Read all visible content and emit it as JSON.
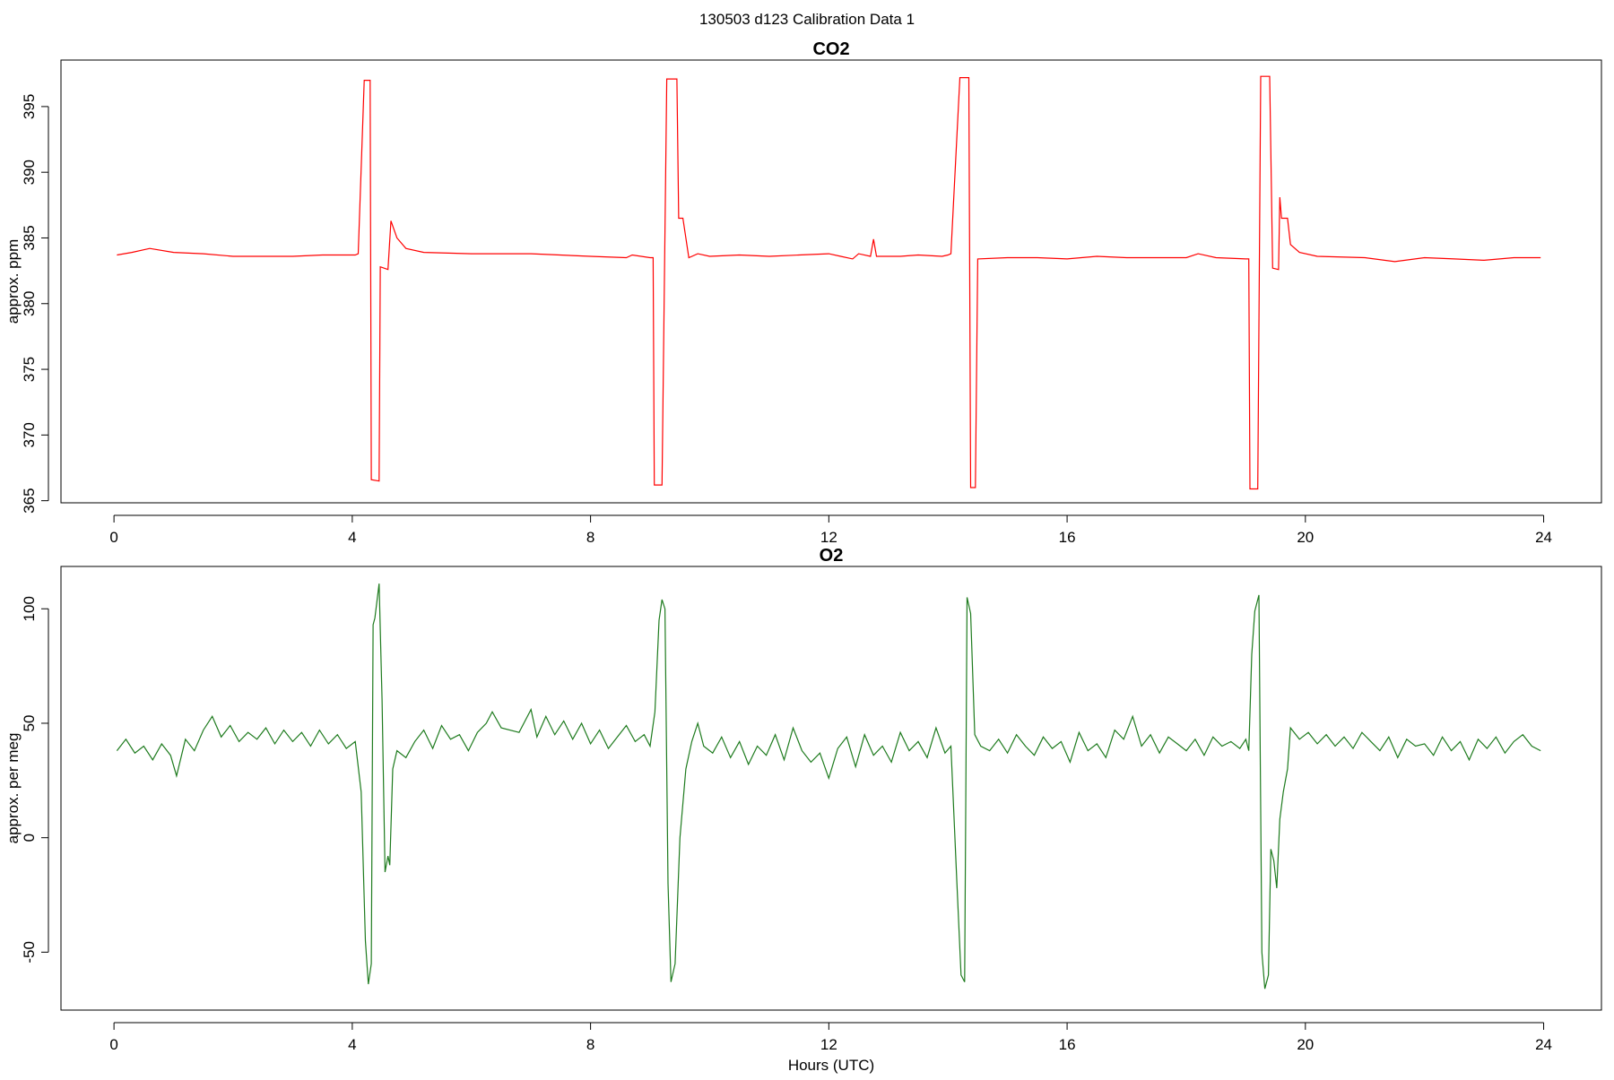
{
  "title": "130503   d123   Calibration Data 1",
  "chart_data": [
    {
      "type": "line",
      "title": "CO2",
      "ylabel": "approx. ppm",
      "color": "#ff0000",
      "xlim": [
        -0.89,
        24.97
      ],
      "xticks": [
        0,
        4,
        8,
        12,
        16,
        20,
        24
      ],
      "ylim": [
        364.84,
        398.54
      ],
      "yticks": [
        365,
        370,
        375,
        380,
        385,
        390,
        395
      ],
      "x": [
        0.05,
        0.3,
        0.6,
        1.0,
        1.5,
        2.0,
        2.5,
        3.0,
        3.5,
        4.05,
        4.1,
        4.2,
        4.3,
        4.32,
        4.45,
        4.47,
        4.6,
        4.65,
        4.75,
        4.9,
        5.2,
        6,
        7,
        8,
        8.6,
        8.7,
        9.0,
        9.05,
        9.07,
        9.2,
        9.28,
        9.45,
        9.48,
        9.55,
        9.65,
        9.8,
        10,
        10.5,
        11,
        11.5,
        12,
        12.2,
        12.4,
        12.5,
        12.7,
        12.75,
        12.8,
        13.2,
        13.5,
        13.9,
        14.0,
        14.05,
        14.2,
        14.35,
        14.38,
        14.46,
        14.5,
        15,
        15.5,
        16,
        16.5,
        17,
        17.5,
        18,
        18.2,
        18.5,
        19.0,
        19.05,
        19.07,
        19.2,
        19.25,
        19.4,
        19.45,
        19.55,
        19.57,
        19.6,
        19.7,
        19.75,
        19.9,
        20.2,
        21,
        21.5,
        22,
        22.5,
        23,
        23.5,
        23.95
      ],
      "values": [
        383.7,
        383.9,
        384.2,
        383.9,
        383.8,
        383.6,
        383.6,
        383.6,
        383.7,
        383.7,
        383.8,
        397.0,
        397.0,
        366.6,
        366.5,
        382.8,
        382.6,
        386.3,
        385.0,
        384.2,
        383.9,
        383.8,
        383.8,
        383.6,
        383.5,
        383.7,
        383.5,
        383.5,
        366.2,
        366.2,
        397.1,
        397.1,
        386.5,
        386.5,
        383.5,
        383.8,
        383.6,
        383.7,
        383.6,
        383.7,
        383.8,
        383.6,
        383.4,
        383.8,
        383.6,
        384.9,
        383.6,
        383.6,
        383.7,
        383.6,
        383.7,
        383.8,
        397.2,
        397.2,
        366.0,
        366.0,
        383.4,
        383.5,
        383.5,
        383.4,
        383.6,
        383.5,
        383.5,
        383.5,
        383.8,
        383.5,
        383.4,
        383.4,
        365.9,
        365.9,
        397.3,
        397.3,
        382.7,
        382.6,
        388.1,
        386.5,
        386.5,
        384.5,
        383.9,
        383.6,
        383.5,
        383.2,
        383.5,
        383.4,
        383.3,
        383.5,
        383.5
      ]
    },
    {
      "type": "line",
      "title": "O2",
      "ylabel": "approx. per meg",
      "xlabel": "Hours (UTC)",
      "color": "#1e7b1e",
      "xlim": [
        -0.89,
        24.97
      ],
      "xticks": [
        0,
        4,
        8,
        12,
        16,
        20,
        24
      ],
      "ylim": [
        -75.3,
        118.5
      ],
      "yticks": [
        -50,
        0,
        50,
        100
      ],
      "x": [
        0.05,
        0.2,
        0.35,
        0.5,
        0.65,
        0.8,
        0.95,
        1.05,
        1.2,
        1.35,
        1.5,
        1.65,
        1.8,
        1.95,
        2.1,
        2.25,
        2.4,
        2.55,
        2.7,
        2.85,
        3.0,
        3.15,
        3.3,
        3.45,
        3.6,
        3.75,
        3.9,
        4.05,
        4.15,
        4.22,
        4.27,
        4.32,
        4.35,
        4.38,
        4.45,
        4.5,
        4.55,
        4.6,
        4.63,
        4.68,
        4.75,
        4.9,
        5.05,
        5.2,
        5.35,
        5.5,
        5.65,
        5.8,
        5.95,
        6.1,
        6.25,
        6.35,
        6.5,
        6.8,
        7.0,
        7.1,
        7.25,
        7.4,
        7.55,
        7.7,
        7.85,
        8.0,
        8.15,
        8.3,
        8.45,
        8.6,
        8.75,
        8.9,
        9.0,
        9.08,
        9.15,
        9.2,
        9.25,
        9.3,
        9.35,
        9.42,
        9.5,
        9.6,
        9.7,
        9.8,
        9.9,
        10.05,
        10.2,
        10.35,
        10.5,
        10.65,
        10.8,
        10.95,
        11.1,
        11.25,
        11.4,
        11.55,
        11.7,
        11.85,
        12.0,
        12.15,
        12.3,
        12.45,
        12.6,
        12.75,
        12.9,
        13.05,
        13.2,
        13.35,
        13.5,
        13.65,
        13.8,
        13.95,
        14.05,
        14.15,
        14.22,
        14.28,
        14.32,
        14.38,
        14.45,
        14.55,
        14.7,
        14.85,
        15.0,
        15.15,
        15.3,
        15.45,
        15.6,
        15.75,
        15.9,
        16.05,
        16.2,
        16.35,
        16.5,
        16.65,
        16.8,
        16.95,
        17.1,
        17.25,
        17.4,
        17.55,
        17.7,
        17.85,
        18.0,
        18.15,
        18.3,
        18.45,
        18.6,
        18.75,
        18.9,
        19.0,
        19.05,
        19.1,
        19.15,
        19.22,
        19.27,
        19.32,
        19.38,
        19.42,
        19.47,
        19.52,
        19.57,
        19.63,
        19.7,
        19.75,
        19.9,
        20.05,
        20.2,
        20.35,
        20.5,
        20.65,
        20.8,
        20.95,
        21.1,
        21.25,
        21.4,
        21.55,
        21.7,
        21.85,
        22.0,
        22.15,
        22.3,
        22.45,
        22.6,
        22.75,
        22.9,
        23.05,
        23.2,
        23.35,
        23.5,
        23.65,
        23.8,
        23.95
      ],
      "values": [
        38,
        43,
        37,
        40,
        34,
        41,
        36,
        27,
        43,
        38,
        47,
        53,
        44,
        49,
        42,
        46,
        43,
        48,
        41,
        47,
        42,
        46,
        40,
        47,
        41,
        45,
        39,
        42,
        20,
        -45,
        -64,
        -55,
        93,
        96,
        111,
        60,
        -15,
        -8,
        -12,
        30,
        38,
        35,
        42,
        47,
        39,
        49,
        43,
        45,
        38,
        46,
        50,
        55,
        48,
        46,
        56,
        44,
        53,
        45,
        51,
        43,
        50,
        41,
        47,
        39,
        44,
        49,
        42,
        45,
        40,
        55,
        95,
        104,
        100,
        -20,
        -63,
        -55,
        0,
        30,
        42,
        50,
        40,
        37,
        44,
        35,
        42,
        32,
        40,
        36,
        45,
        34,
        48,
        38,
        33,
        37,
        26,
        39,
        44,
        31,
        45,
        36,
        40,
        33,
        46,
        38,
        42,
        35,
        48,
        37,
        40,
        -20,
        -60,
        -63,
        105,
        98,
        45,
        40,
        38,
        43,
        37,
        45,
        40,
        36,
        44,
        39,
        42,
        33,
        46,
        38,
        41,
        35,
        47,
        43,
        53,
        40,
        45,
        37,
        44,
        41,
        38,
        43,
        36,
        44,
        40,
        42,
        39,
        43,
        38,
        80,
        99,
        106,
        -50,
        -66,
        -60,
        -5,
        -10,
        -22,
        8,
        20,
        30,
        48,
        43,
        46,
        41,
        45,
        40,
        44,
        39,
        46,
        42,
        38,
        44,
        35,
        43,
        40,
        41,
        36,
        44,
        38,
        42,
        34,
        43,
        39,
        44,
        37,
        42,
        45,
        40,
        38
      ]
    }
  ]
}
